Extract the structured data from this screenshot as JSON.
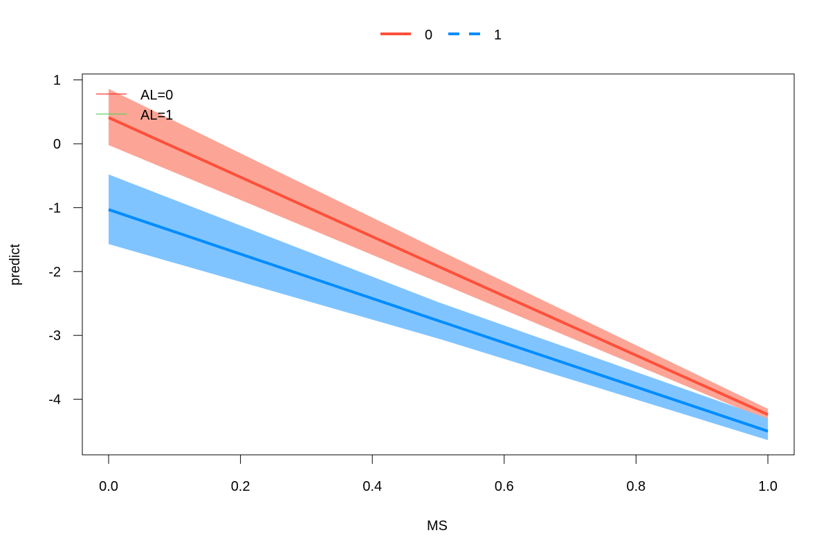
{
  "chart_data": {
    "type": "line",
    "title": "",
    "xlabel": "MS",
    "ylabel": "predict",
    "xlim": [
      0,
      1
    ],
    "ylim": [
      -4.6,
      1.0
    ],
    "xticks": [
      0.0,
      0.2,
      0.4,
      0.6,
      0.8,
      1.0
    ],
    "xtick_labels": [
      "0.0",
      "0.2",
      "0.4",
      "0.6",
      "0.8",
      "1.0"
    ],
    "yticks": [
      1,
      0,
      -1,
      -2,
      -3,
      -4
    ],
    "ytick_labels": [
      "1",
      "0",
      "-1",
      "-2",
      "-3",
      "-4"
    ],
    "grid": false,
    "top_legend": {
      "placement": "top-center",
      "entries": [
        {
          "label": "0",
          "color": "#FF4F3A",
          "style": "solid"
        },
        {
          "label": "1",
          "color": "#008CFF",
          "style": "dashed"
        }
      ]
    },
    "inner_legend": {
      "placement": "top-left",
      "entries": [
        {
          "label": "AL=0",
          "color": "#FF3030"
        },
        {
          "label": "AL=1",
          "color": "#60D060"
        }
      ]
    },
    "series": [
      {
        "name": "0",
        "color": "#FF4F3A",
        "band_color": "#FCA596",
        "x": [
          0,
          0.5,
          1
        ],
        "y": [
          0.41,
          -1.92,
          -4.24
        ],
        "lower": [
          -0.02,
          -2.17,
          -4.33
        ],
        "upper": [
          0.86,
          -1.66,
          -4.15
        ]
      },
      {
        "name": "1",
        "color": "#008CFF",
        "band_color": "#80C4FF",
        "x": [
          0,
          0.5,
          1
        ],
        "y": [
          -1.03,
          -2.77,
          -4.5
        ],
        "lower": [
          -1.57,
          -3.05,
          -4.64
        ],
        "upper": [
          -0.48,
          -2.48,
          -4.3
        ]
      }
    ]
  }
}
